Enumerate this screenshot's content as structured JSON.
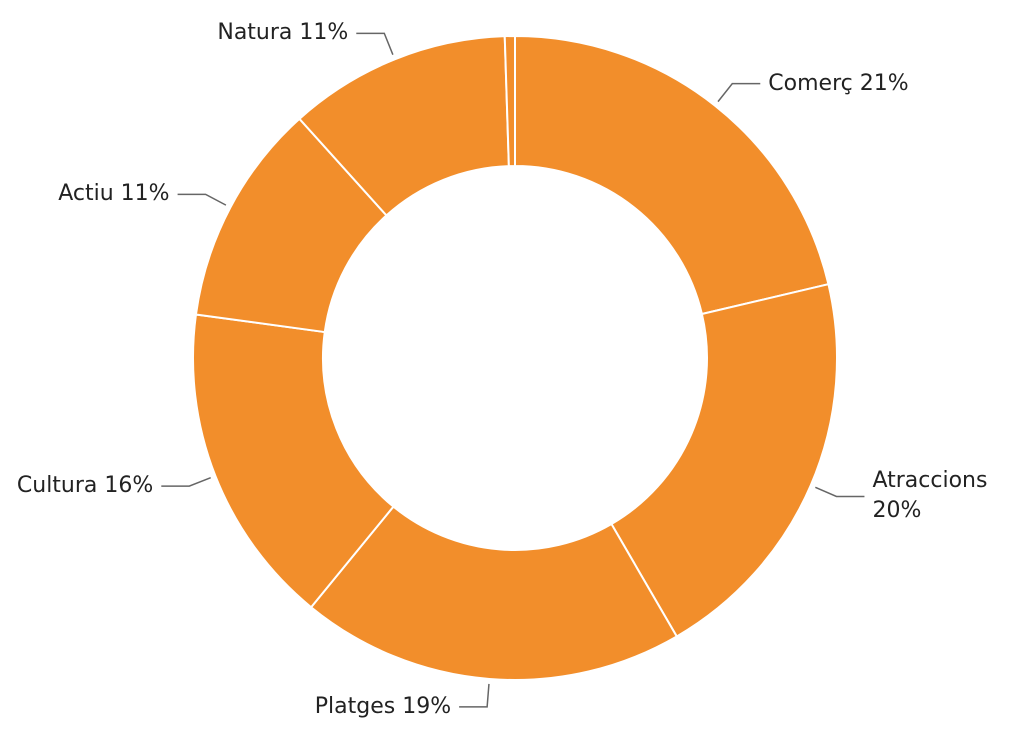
{
  "chart_data": {
    "type": "donut",
    "labels": [
      "Comerç 21%",
      "Atraccions 20%",
      "Platges 19%",
      "Cultura 16%",
      "Actiu 11%",
      "Natura 11%",
      null
    ],
    "values": [
      21,
      20,
      19,
      16,
      11,
      11,
      0.5
    ],
    "color": "#f28e2b"
  }
}
